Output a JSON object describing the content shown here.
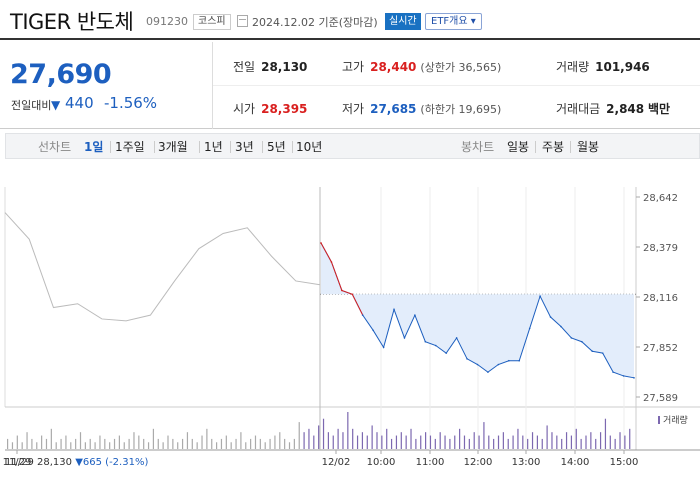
{
  "header": {
    "name": "TIGER 반도체",
    "code": "091230",
    "market": "코스피",
    "date": "2024.12.02 기준(장마감)",
    "realtime": "실시간",
    "etf": "ETF개요"
  },
  "quote": {
    "price": "27,690",
    "change_label": "전일대비",
    "change": "440",
    "change_pct": "-1.56%",
    "prev_close_label": "전일",
    "prev_close": "28,130",
    "high_label": "고가",
    "high": "28,440",
    "upper_limit": "(상한가 36,565)",
    "volume_label": "거래량",
    "volume": "101,946",
    "open_label": "시가",
    "open": "28,395",
    "low_label": "저가",
    "low": "27,685",
    "lower_limit": "(하한가 19,695)",
    "amount_label": "거래대금",
    "amount": "2,848",
    "amount_unit": "백만"
  },
  "periods": {
    "line_label": "선차트",
    "items": [
      "1일",
      "1주일",
      "3개월",
      "1년",
      "3년",
      "5년",
      "10년"
    ],
    "selected": "1일",
    "candle_label": "봉차트",
    "candles": [
      "일봉",
      "주봉",
      "월봉"
    ]
  },
  "chart_data": {
    "type": "line",
    "title": "",
    "y_ticks": [
      "28,642",
      "28,379",
      "28,116",
      "27,852",
      "27,589"
    ],
    "x_ticks": [
      "11/29",
      "12/02",
      "10:00",
      "11:00",
      "12:00",
      "13:00",
      "14:00",
      "15:00"
    ],
    "ylim": [
      27589,
      28642
    ],
    "prev_close": 28130,
    "series": [
      {
        "x": [
          "11/29 09:00",
          "09:30",
          "10:00",
          "10:30",
          "11:00",
          "11:30",
          "12:00",
          "12:30",
          "13:00",
          "13:30",
          "14:00",
          "14:30",
          "15:00",
          "15:30"
        ],
        "values": [
          28560,
          28420,
          28060,
          28080,
          28000,
          27990,
          28020,
          28200,
          28370,
          28450,
          28480,
          28330,
          28200,
          28180
        ]
      },
      {
        "x": [
          "12/02 09:00",
          "09:05",
          "09:10",
          "09:20",
          "09:30",
          "09:40",
          "09:50",
          "10:00",
          "10:15",
          "10:30",
          "10:45",
          "11:00",
          "11:15",
          "11:30",
          "11:45",
          "12:00",
          "12:15",
          "12:30",
          "12:45",
          "13:00",
          "13:10",
          "13:20",
          "13:30",
          "13:45",
          "14:00",
          "14:15",
          "14:30",
          "14:45",
          "15:00",
          "15:15",
          "15:30"
        ],
        "values": [
          28400,
          28300,
          28150,
          28130,
          28020,
          27940,
          27850,
          28050,
          27900,
          28020,
          27880,
          27860,
          27820,
          27900,
          27790,
          27760,
          27720,
          27760,
          27780,
          27780,
          27950,
          28120,
          28010,
          27960,
          27900,
          27880,
          27830,
          27820,
          27720,
          27700,
          27690
        ]
      }
    ],
    "volume_label": "거래량",
    "volume_profile": [
      3,
      2,
      4,
      2,
      5,
      3,
      2,
      4,
      3,
      6,
      2,
      3,
      4,
      2,
      3,
      5,
      2,
      3,
      2,
      4,
      3,
      2,
      3,
      4,
      2,
      3,
      5,
      4,
      3,
      2,
      6,
      3,
      2,
      4,
      3,
      2,
      3,
      5,
      3,
      2,
      4,
      6,
      3,
      2,
      3,
      4,
      2,
      3,
      5,
      2,
      3,
      4,
      3,
      2,
      3,
      4,
      5,
      3,
      2,
      3,
      8,
      5,
      6,
      4,
      7,
      9,
      5,
      4,
      6,
      5,
      11,
      6,
      4,
      5,
      4,
      7,
      5,
      4,
      6,
      3,
      4,
      5,
      4,
      6,
      3,
      4,
      5,
      4,
      3,
      5,
      4,
      3,
      4,
      6,
      4,
      3,
      5,
      4,
      8,
      4,
      3,
      4,
      5,
      3,
      4,
      6,
      4,
      3,
      5,
      4,
      3,
      7,
      5,
      4,
      3,
      5,
      4,
      6,
      3,
      4,
      5,
      3,
      5,
      9,
      4,
      3,
      5,
      4,
      6
    ]
  },
  "footer": {
    "date": "11/29",
    "price": "28,130",
    "change": "▼665",
    "pct": "(-2.31%)"
  },
  "colors": {
    "up": "#d9201f",
    "down": "#1d5fbf",
    "prev_line": "#bbbbbb",
    "fill": "#e3edfb",
    "volume": "#7c68b0"
  }
}
